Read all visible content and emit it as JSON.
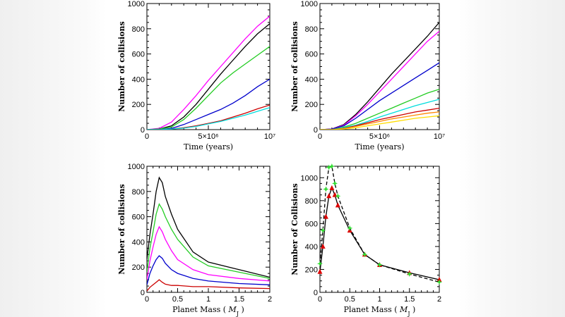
{
  "colors": {
    "black": "#000000",
    "magenta": "#ff00ff",
    "green": "#22cc22",
    "blue": "#0000cc",
    "red": "#cc0000",
    "cyan": "#00dddd",
    "orange": "#ff8800",
    "yellow": "#ffdd00",
    "ltgreen": "#33dd33",
    "red_marker": "#dd0000"
  },
  "chart_data": [
    {
      "id": "tl",
      "type": "line",
      "xlabel": "Time (years)",
      "ylabel": "Number of collisions",
      "xlim": [
        0,
        10000000
      ],
      "ylim": [
        0,
        1000
      ],
      "xticks": [
        0,
        5000000,
        10000000
      ],
      "xtick_labels": [
        "0",
        "5×10⁶",
        "10⁷"
      ],
      "yticks": [
        0,
        200,
        400,
        600,
        800,
        1000
      ],
      "ytick_labels": [
        "0",
        "200",
        "400",
        "600",
        "800",
        "1000"
      ],
      "series": [
        {
          "name": "magenta",
          "color": "magenta",
          "x": [
            1000000,
            2000000,
            3000000,
            4000000,
            5000000,
            6000000,
            7000000,
            8000000,
            9000000,
            10000000
          ],
          "y": [
            10,
            60,
            160,
            270,
            390,
            500,
            610,
            720,
            820,
            900
          ]
        },
        {
          "name": "black",
          "color": "black",
          "x": [
            1000000,
            2000000,
            3000000,
            4000000,
            5000000,
            6000000,
            7000000,
            8000000,
            9000000,
            10000000
          ],
          "y": [
            5,
            30,
            100,
            200,
            320,
            440,
            550,
            660,
            760,
            840
          ]
        },
        {
          "name": "green",
          "color": "green",
          "x": [
            1000000,
            2000000,
            3000000,
            4000000,
            5000000,
            6000000,
            7000000,
            8000000,
            9000000,
            10000000
          ],
          "y": [
            5,
            20,
            80,
            170,
            270,
            370,
            450,
            520,
            590,
            660
          ]
        },
        {
          "name": "blue",
          "color": "blue",
          "x": [
            1000000,
            2000000,
            3000000,
            4000000,
            5000000,
            6000000,
            7000000,
            8000000,
            9000000,
            10000000
          ],
          "y": [
            0,
            10,
            40,
            80,
            120,
            160,
            210,
            270,
            340,
            400
          ]
        },
        {
          "name": "red",
          "color": "red",
          "x": [
            1000000,
            2000000,
            3000000,
            4000000,
            5000000,
            6000000,
            7000000,
            8000000,
            9000000,
            10000000
          ],
          "y": [
            0,
            5,
            15,
            30,
            50,
            70,
            100,
            130,
            165,
            195
          ]
        },
        {
          "name": "cyan",
          "color": "cyan",
          "x": [
            1000000,
            2000000,
            3000000,
            4000000,
            5000000,
            6000000,
            7000000,
            8000000,
            9000000,
            10000000
          ],
          "y": [
            0,
            5,
            12,
            25,
            45,
            65,
            90,
            115,
            145,
            175
          ]
        }
      ]
    },
    {
      "id": "tr",
      "type": "line",
      "xlabel": "Time (years)",
      "ylabel": "Number of collisions",
      "xlim": [
        0,
        10000000
      ],
      "ylim": [
        0,
        1000
      ],
      "xticks": [
        0,
        5000000,
        10000000
      ],
      "xtick_labels": [
        "0",
        "5×10⁶",
        "10⁷"
      ],
      "yticks": [
        0,
        200,
        400,
        600,
        800,
        1000
      ],
      "ytick_labels": [
        "0",
        "200",
        "400",
        "600",
        "800",
        "1000"
      ],
      "series": [
        {
          "name": "black",
          "color": "black",
          "x": [
            1000000,
            2000000,
            3000000,
            4000000,
            5000000,
            6000000,
            7000000,
            8000000,
            9000000,
            10000000
          ],
          "y": [
            5,
            40,
            120,
            220,
            330,
            440,
            540,
            640,
            740,
            850
          ]
        },
        {
          "name": "magenta",
          "color": "magenta",
          "x": [
            1000000,
            2000000,
            3000000,
            4000000,
            5000000,
            6000000,
            7000000,
            8000000,
            9000000,
            10000000
          ],
          "y": [
            5,
            35,
            110,
            200,
            300,
            400,
            500,
            600,
            700,
            780
          ]
        },
        {
          "name": "blue",
          "color": "blue",
          "x": [
            1000000,
            2000000,
            3000000,
            4000000,
            5000000,
            6000000,
            7000000,
            8000000,
            9000000,
            10000000
          ],
          "y": [
            5,
            30,
            90,
            160,
            230,
            290,
            350,
            410,
            470,
            530
          ]
        },
        {
          "name": "green",
          "color": "green",
          "x": [
            1000000,
            2000000,
            3000000,
            4000000,
            5000000,
            6000000,
            7000000,
            8000000,
            9000000,
            10000000
          ],
          "y": [
            0,
            20,
            50,
            90,
            130,
            170,
            210,
            250,
            290,
            320
          ]
        },
        {
          "name": "cyan",
          "color": "cyan",
          "x": [
            1000000,
            2000000,
            3000000,
            4000000,
            5000000,
            6000000,
            7000000,
            8000000,
            9000000,
            10000000
          ],
          "y": [
            0,
            15,
            35,
            65,
            100,
            130,
            160,
            190,
            215,
            240
          ]
        },
        {
          "name": "red",
          "color": "red",
          "x": [
            1000000,
            2000000,
            3000000,
            4000000,
            5000000,
            6000000,
            7000000,
            8000000,
            9000000,
            10000000
          ],
          "y": [
            0,
            10,
            30,
            55,
            80,
            100,
            120,
            140,
            155,
            170
          ]
        },
        {
          "name": "orange",
          "color": "orange",
          "x": [
            1000000,
            2000000,
            3000000,
            4000000,
            5000000,
            6000000,
            7000000,
            8000000,
            9000000,
            10000000
          ],
          "y": [
            0,
            8,
            25,
            45,
            65,
            85,
            100,
            115,
            130,
            140
          ]
        },
        {
          "name": "yellow",
          "color": "yellow",
          "x": [
            1000000,
            2000000,
            3000000,
            4000000,
            5000000,
            6000000,
            7000000,
            8000000,
            9000000,
            10000000
          ],
          "y": [
            0,
            5,
            15,
            30,
            45,
            60,
            75,
            90,
            100,
            110
          ]
        }
      ]
    },
    {
      "id": "bl",
      "type": "line",
      "xlabel": "Planet Mass  (",
      "xlabel_unit": "M",
      "xlabel_sub": "J",
      "xlabel_close": ")",
      "ylabel": "Number of collisions",
      "xlim": [
        0,
        2
      ],
      "ylim": [
        0,
        1000
      ],
      "xticks": [
        0,
        0.5,
        1,
        1.5,
        2
      ],
      "xtick_labels": [
        "0",
        "0.5",
        "1",
        "1.5",
        "2"
      ],
      "yticks": [
        0,
        200,
        400,
        600,
        800,
        1000
      ],
      "ytick_labels": [
        "0",
        "200",
        "400",
        "600",
        "800",
        "1000"
      ],
      "series": [
        {
          "name": "black",
          "color": "black",
          "x": [
            0,
            0.05,
            0.1,
            0.15,
            0.2,
            0.25,
            0.3,
            0.4,
            0.5,
            0.75,
            1,
            1.5,
            2
          ],
          "y": [
            260,
            460,
            620,
            800,
            910,
            870,
            760,
            620,
            500,
            320,
            240,
            180,
            120
          ]
        },
        {
          "name": "green",
          "color": "green",
          "x": [
            0,
            0.05,
            0.1,
            0.15,
            0.2,
            0.25,
            0.3,
            0.4,
            0.5,
            0.75,
            1,
            1.5,
            2
          ],
          "y": [
            160,
            350,
            480,
            620,
            700,
            660,
            600,
            500,
            420,
            280,
            210,
            160,
            110
          ]
        },
        {
          "name": "magenta",
          "color": "magenta",
          "x": [
            0,
            0.05,
            0.1,
            0.15,
            0.2,
            0.25,
            0.3,
            0.4,
            0.5,
            0.75,
            1,
            1.5,
            2
          ],
          "y": [
            100,
            250,
            360,
            460,
            520,
            480,
            420,
            330,
            260,
            180,
            140,
            110,
            90
          ]
        },
        {
          "name": "blue",
          "color": "blue",
          "x": [
            0,
            0.05,
            0.1,
            0.15,
            0.2,
            0.25,
            0.3,
            0.4,
            0.5,
            0.75,
            1,
            1.5,
            2
          ],
          "y": [
            60,
            150,
            210,
            260,
            290,
            270,
            230,
            180,
            150,
            110,
            90,
            70,
            60
          ]
        },
        {
          "name": "red",
          "color": "red",
          "x": [
            0,
            0.05,
            0.1,
            0.15,
            0.2,
            0.25,
            0.3,
            0.4,
            0.5,
            0.75,
            1,
            1.5,
            2
          ],
          "y": [
            10,
            40,
            60,
            80,
            100,
            80,
            65,
            55,
            55,
            45,
            45,
            35,
            30
          ]
        }
      ]
    },
    {
      "id": "br",
      "type": "line",
      "xlabel": "Planet Mass  (",
      "xlabel_unit": "M",
      "xlabel_sub": "J",
      "xlabel_close": ")",
      "ylabel": "Number of Collisions",
      "xlim": [
        0,
        2
      ],
      "ylim": [
        0,
        1100
      ],
      "xticks": [
        0,
        0.5,
        1,
        1.5,
        2
      ],
      "xtick_labels": [
        "0",
        "0.5",
        "1",
        "1.5",
        "2"
      ],
      "yticks": [
        0,
        200,
        400,
        600,
        800,
        1000
      ],
      "ytick_labels": [
        "0",
        "200",
        "400",
        "600",
        "800",
        "1000"
      ],
      "series": [
        {
          "name": "solid-red-markers",
          "color": "black",
          "dash": false,
          "marker": "triangle",
          "marker_color": "red_marker",
          "x": [
            0,
            0.05,
            0.1,
            0.15,
            0.2,
            0.25,
            0.3,
            0.5,
            0.75,
            1,
            1.5,
            2
          ],
          "y": [
            180,
            400,
            660,
            840,
            910,
            850,
            760,
            540,
            330,
            240,
            170,
            110
          ]
        },
        {
          "name": "dashed-green-markers",
          "color": "black",
          "dash": true,
          "marker": "star",
          "marker_color": "ltgreen",
          "x": [
            0,
            0.05,
            0.1,
            0.15,
            0.2,
            0.25,
            0.3,
            0.5,
            0.75,
            1,
            1.5,
            2
          ],
          "y": [
            250,
            540,
            900,
            1090,
            1100,
            950,
            840,
            560,
            330,
            240,
            160,
            90
          ]
        }
      ]
    }
  ]
}
